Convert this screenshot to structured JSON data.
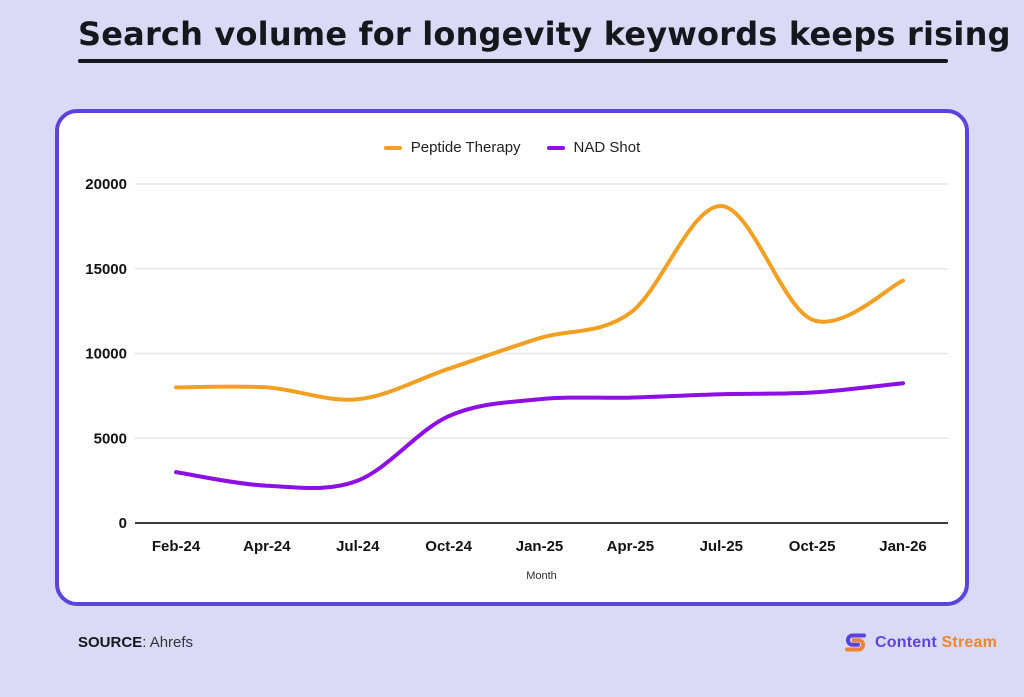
{
  "title": "Search volume for longevity keywords keeps rising",
  "chart_data": {
    "type": "line",
    "categories": [
      "Feb-24",
      "Apr-24",
      "Jul-24",
      "Oct-24",
      "Jan-25",
      "Apr-25",
      "Jul-25",
      "Oct-25",
      "Jan-26"
    ],
    "series": [
      {
        "name": "Peptide Therapy",
        "color": "#F2A024",
        "values": [
          8000,
          8000,
          7300,
          9100,
          10900,
          12400,
          18700,
          12000,
          14300
        ]
      },
      {
        "name": "NAD Shot",
        "color": "#8E0FE3",
        "values": [
          3000,
          2200,
          2500,
          6300,
          7300,
          7400,
          7600,
          7700,
          8250
        ]
      }
    ],
    "title": "",
    "xlabel": "Month",
    "ylabel": "",
    "ylim": [
      0,
      20000
    ],
    "yticks": [
      0,
      5000,
      10000,
      15000,
      20000
    ],
    "grid": "horizontal-only, zero-baseline dark",
    "legend_position": "top-center",
    "curve": "smooth-spline"
  },
  "footer": {
    "source_label": "SOURCE",
    "source_value": ": Ahrefs",
    "brand": {
      "icon": "content-stream-s-logo",
      "name_primary": "Content",
      "name_secondary": "Stream",
      "primary_color": "#5b45d9",
      "secondary_color": "#ef8532"
    }
  },
  "colors": {
    "page_bg": "#dadaf6",
    "card_bg": "#ffffff",
    "card_border": "#5b45d9",
    "title_text": "#16161d",
    "gridline": "#e7e7e7",
    "axis_line": "#3c3c3c",
    "tick_label": "#121212"
  }
}
